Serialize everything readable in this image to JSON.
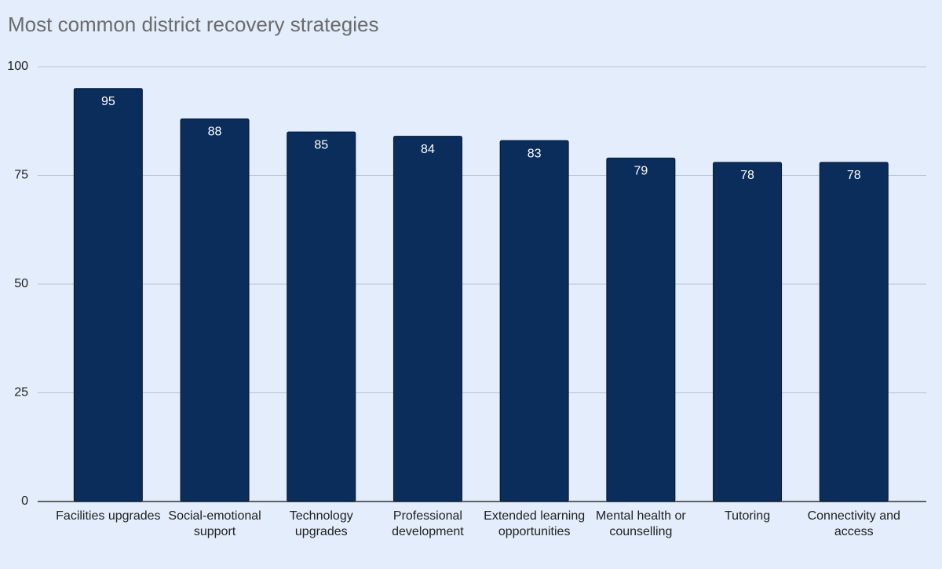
{
  "chart_data": {
    "type": "bar",
    "title": "Most common district recovery strategies",
    "categories": [
      "Facilities upgrades",
      "Social-emotional support",
      "Technology upgrades",
      "Professional development",
      "Extended learning opportunities",
      "Mental health or counselling",
      "Tutoring",
      "Connectivity and access"
    ],
    "values": [
      95,
      88,
      85,
      84,
      83,
      79,
      78,
      78
    ],
    "color": "#0b2d5b",
    "ylim": [
      0,
      100
    ],
    "yticks": [
      0,
      25,
      50,
      75,
      100
    ],
    "grid": true
  }
}
